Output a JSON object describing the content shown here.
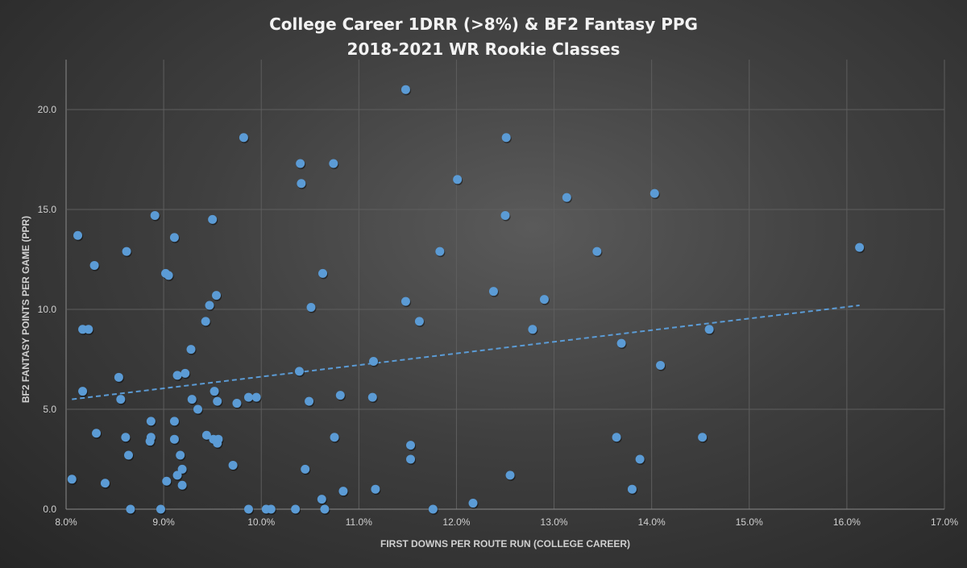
{
  "chart_data": {
    "type": "scatter",
    "title": [
      "College Career 1DRR (>8%) & BF2 Fantasy PPG",
      "2018-2021 WR Rookie Classes"
    ],
    "xlabel": "FIRST DOWNS PER ROUTE RUN (COLLEGE CAREER)",
    "ylabel": "BF2 FANTASY POINTS PER GAME (PPR)",
    "xlim": [
      8.0,
      17.0
    ],
    "ylim": [
      0,
      22.5
    ],
    "xticks": [
      8,
      9,
      10,
      11,
      12,
      13,
      14,
      15,
      16,
      17
    ],
    "xtick_labels": [
      "8.0%",
      "9.0%",
      "10.0%",
      "11.0%",
      "12.0%",
      "13.0%",
      "14.0%",
      "15.0%",
      "16.0%",
      "17.0%"
    ],
    "yticks": [
      0,
      5,
      10,
      15,
      20
    ],
    "ytick_labels": [
      "0.0",
      "5.0",
      "10.0",
      "15.0",
      "20.0"
    ],
    "grid": true,
    "marker_color": "#5b9bd5",
    "trendline": {
      "type": "linear",
      "style": "dashed",
      "x": [
        8.06,
        16.13
      ],
      "y": [
        5.5,
        10.2
      ]
    },
    "points": [
      [
        8.06,
        1.5
      ],
      [
        8.12,
        13.7
      ],
      [
        8.17,
        9.0
      ],
      [
        8.23,
        9.0
      ],
      [
        8.17,
        5.9
      ],
      [
        8.29,
        12.2
      ],
      [
        8.31,
        3.8
      ],
      [
        8.4,
        1.3
      ],
      [
        8.54,
        6.6
      ],
      [
        8.56,
        5.5
      ],
      [
        8.62,
        12.9
      ],
      [
        8.61,
        3.6
      ],
      [
        8.64,
        2.7
      ],
      [
        8.66,
        0
      ],
      [
        8.91,
        14.7
      ],
      [
        8.87,
        4.4
      ],
      [
        8.87,
        3.6
      ],
      [
        8.86,
        3.4
      ],
      [
        8.97,
        0
      ],
      [
        9.02,
        11.8
      ],
      [
        9.05,
        11.7
      ],
      [
        9.03,
        1.4
      ],
      [
        9.11,
        13.6
      ],
      [
        9.11,
        4.4
      ],
      [
        9.11,
        3.5
      ],
      [
        9.14,
        6.7
      ],
      [
        9.17,
        2.7
      ],
      [
        9.19,
        2.0
      ],
      [
        9.14,
        1.7
      ],
      [
        9.19,
        1.2
      ],
      [
        9.22,
        6.8
      ],
      [
        9.28,
        8.0
      ],
      [
        9.29,
        5.5
      ],
      [
        9.35,
        5.0
      ],
      [
        9.43,
        9.4
      ],
      [
        9.47,
        10.2
      ],
      [
        9.5,
        14.5
      ],
      [
        9.54,
        10.7
      ],
      [
        9.44,
        3.7
      ],
      [
        9.52,
        5.9
      ],
      [
        9.51,
        3.5
      ],
      [
        9.56,
        3.5
      ],
      [
        9.55,
        3.3
      ],
      [
        9.55,
        5.4
      ],
      [
        9.71,
        2.2
      ],
      [
        9.75,
        5.3
      ],
      [
        9.82,
        18.6
      ],
      [
        9.87,
        5.6
      ],
      [
        9.95,
        5.6
      ],
      [
        9.87,
        0
      ],
      [
        10.05,
        0
      ],
      [
        10.1,
        0
      ],
      [
        10.35,
        0
      ],
      [
        10.4,
        17.3
      ],
      [
        10.41,
        16.3
      ],
      [
        10.39,
        6.9
      ],
      [
        10.45,
        2.0
      ],
      [
        10.49,
        5.4
      ],
      [
        10.51,
        10.1
      ],
      [
        10.63,
        11.8
      ],
      [
        10.62,
        0.5
      ],
      [
        10.65,
        0
      ],
      [
        10.74,
        17.3
      ],
      [
        10.75,
        3.6
      ],
      [
        10.81,
        5.7
      ],
      [
        10.84,
        0.9
      ],
      [
        11.15,
        7.4
      ],
      [
        11.14,
        5.6
      ],
      [
        11.17,
        1.0
      ],
      [
        11.48,
        21.0
      ],
      [
        11.48,
        10.4
      ],
      [
        11.53,
        3.2
      ],
      [
        11.53,
        2.5
      ],
      [
        11.62,
        9.4
      ],
      [
        11.76,
        0
      ],
      [
        11.83,
        12.9
      ],
      [
        12.01,
        16.5
      ],
      [
        12.17,
        0.3
      ],
      [
        12.38,
        10.9
      ],
      [
        12.51,
        18.6
      ],
      [
        12.5,
        14.7
      ],
      [
        12.55,
        1.7
      ],
      [
        12.78,
        9.0
      ],
      [
        12.9,
        10.5
      ],
      [
        13.13,
        15.6
      ],
      [
        13.44,
        12.9
      ],
      [
        13.64,
        3.6
      ],
      [
        13.69,
        8.3
      ],
      [
        13.8,
        1.0
      ],
      [
        13.88,
        2.5
      ],
      [
        14.03,
        15.8
      ],
      [
        14.09,
        7.2
      ],
      [
        14.52,
        3.6
      ],
      [
        14.59,
        9.0
      ],
      [
        16.13,
        13.1
      ]
    ]
  }
}
